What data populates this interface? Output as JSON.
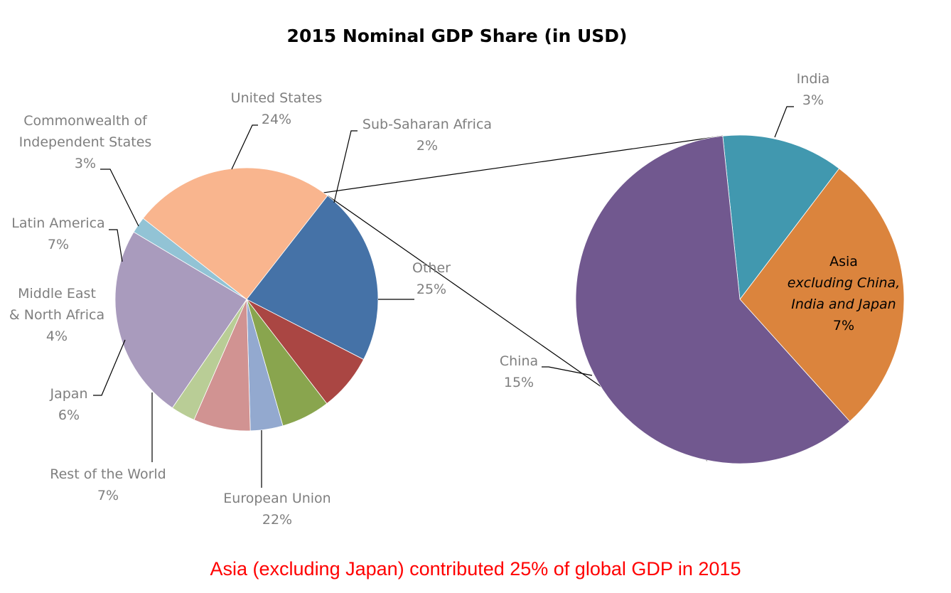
{
  "chart_data": [
    {
      "type": "pie",
      "title": "2015 Nominal GDP Share (in USD)",
      "slices": [
        {
          "label": "Other",
          "display": "25%",
          "value": 25,
          "color": "#f9b58e"
        },
        {
          "label": "European Union",
          "display": "22%",
          "value": 22,
          "color": "#4572a7"
        },
        {
          "label": "Rest of the World",
          "display": "7%",
          "value": 7,
          "color": "#aa4643"
        },
        {
          "label": "Japan",
          "display": "6%",
          "value": 6,
          "color": "#89a54e"
        },
        {
          "label": "Middle East\n& North Africa",
          "display": "4%",
          "value": 4,
          "color": "#93a9cf"
        },
        {
          "label": "Latin America",
          "display": "7%",
          "value": 7,
          "color": "#d19392"
        },
        {
          "label": "Commonwealth of\nIndependent States",
          "display": "3%",
          "value": 3,
          "color": "#b9cd96"
        },
        {
          "label": "United States",
          "display": "24%",
          "value": 24,
          "color": "#a99bbd"
        },
        {
          "label": "Sub-Saharan Africa",
          "display": "2%",
          "value": 2,
          "color": "#92c3d5"
        }
      ]
    },
    {
      "type": "pie",
      "title": "",
      "slices": [
        {
          "label": "India",
          "display": "3%",
          "value": 3,
          "color": "#4198af"
        },
        {
          "label": "Asia\nexcluding China,\nIndia and Japan",
          "display": "7%",
          "value": 7,
          "color": "#db843d"
        },
        {
          "label": "China",
          "display": "15%",
          "value": 15,
          "color": "#71588f"
        }
      ]
    }
  ],
  "caption": "Asia (excluding Japan) contributed 25% of global GDP in 2015"
}
